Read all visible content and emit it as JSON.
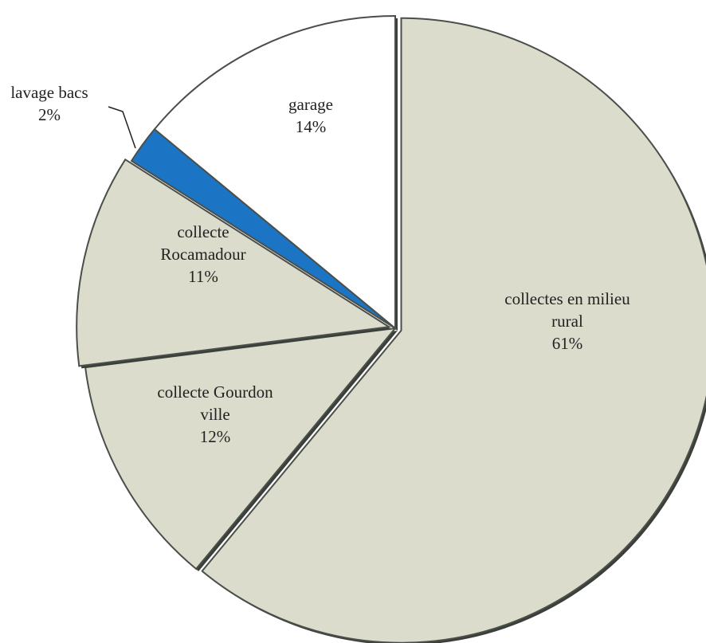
{
  "chart_data": {
    "type": "pie",
    "slices": [
      {
        "name": "collectes en milieu rural",
        "label_lines": [
          "collectes en milieu",
          "rural"
        ],
        "pct_label": "61%",
        "value": 61,
        "color": "#dcdccd"
      },
      {
        "name": "collecte Gourdon ville",
        "label_lines": [
          "collecte Gourdon",
          "ville"
        ],
        "pct_label": "12%",
        "value": 12,
        "color": "#dcdccd"
      },
      {
        "name": "collecte Rocamadour",
        "label_lines": [
          "collecte",
          "Rocamadour"
        ],
        "pct_label": "11%",
        "value": 11,
        "color": "#dcdccd"
      },
      {
        "name": "lavage bacs",
        "label_lines": [
          "lavage bacs"
        ],
        "pct_label": "2%",
        "value": 2,
        "color": "#1b75c4"
      },
      {
        "name": "garage",
        "label_lines": [
          "garage"
        ],
        "pct_label": "14%",
        "value": 14,
        "color": "#ffffff"
      }
    ],
    "legend": "none",
    "exploded_slices": [
      "collectes en milieu rural",
      "collecte Rocamadour"
    ]
  }
}
